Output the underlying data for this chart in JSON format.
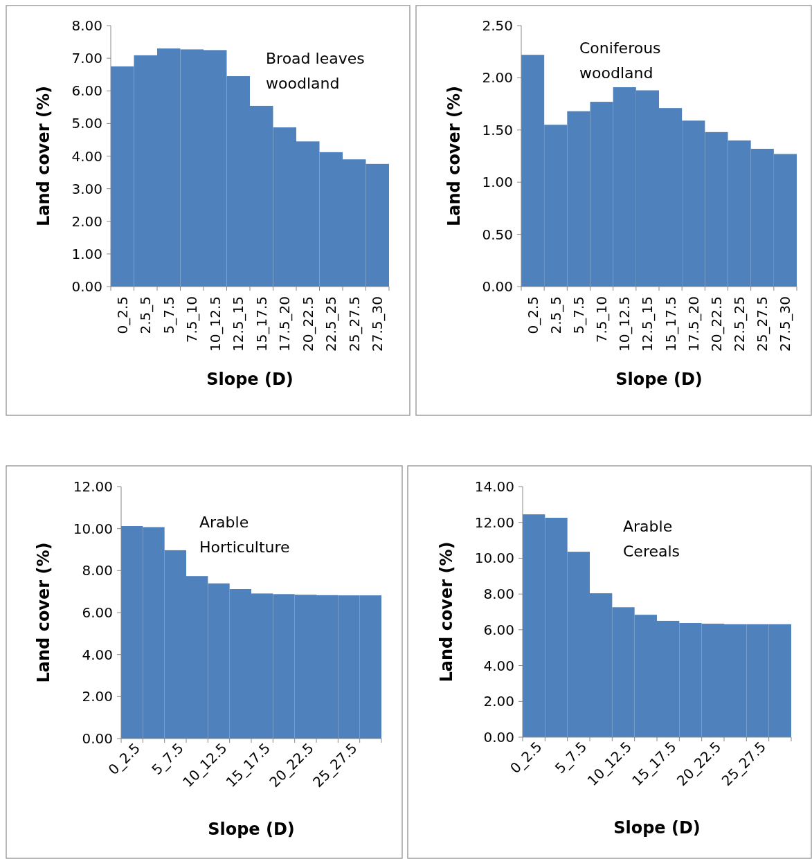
{
  "chart_data": [
    {
      "type": "bar",
      "annotations": [
        "Broad leaves woodland"
      ],
      "xlabel": "Slope (D)",
      "ylabel": "Land cover (%)",
      "categories": [
        "0_2.5",
        "2.5_5",
        "5_7.5",
        "7.5_10",
        "10_12.5",
        "12.5_15",
        "15_17.5",
        "17.5_20",
        "20_22.5",
        "22.5_25",
        "25_27.5",
        "27.5_30"
      ],
      "values": [
        6.75,
        7.09,
        7.3,
        7.27,
        7.25,
        6.45,
        5.54,
        4.88,
        4.45,
        4.12,
        3.9,
        3.76
      ],
      "color": "#4f81bd",
      "ylim": [
        0,
        8
      ],
      "yticks": [
        {
          "value": 0,
          "label": "0.00"
        },
        {
          "value": 1,
          "label": "1.00"
        },
        {
          "value": 2,
          "label": "2.00"
        },
        {
          "value": 3,
          "label": "3.00"
        },
        {
          "value": 4,
          "label": "4.00"
        },
        {
          "value": 5,
          "label": "5.00"
        },
        {
          "value": 6,
          "label": "6.00"
        },
        {
          "value": 7,
          "label": "7.00"
        },
        {
          "value": 8,
          "label": "8.00"
        }
      ]
    },
    {
      "type": "bar",
      "annotations": [
        "Coniferous woodland"
      ],
      "xlabel": "Slope (D)",
      "ylabel": "Land cover (%)",
      "categories": [
        "0_2.5",
        "2.5_5",
        "5_7.5",
        "7.5_10",
        "10_12.5",
        "12.5_15",
        "15_17.5",
        "17.5_20",
        "20_22.5",
        "22.5_25",
        "25_27.5",
        "27.5_30"
      ],
      "values": [
        2.22,
        1.55,
        1.68,
        1.77,
        1.91,
        1.88,
        1.71,
        1.59,
        1.48,
        1.4,
        1.32,
        1.27
      ],
      "color": "#4f81bd",
      "ylim": [
        0,
        2.5
      ],
      "yticks": [
        {
          "value": 0,
          "label": "0.00"
        },
        {
          "value": 0.5,
          "label": "0.50"
        },
        {
          "value": 1,
          "label": "1.00"
        },
        {
          "value": 1.5,
          "label": "1.50"
        },
        {
          "value": 2,
          "label": "2.00"
        },
        {
          "value": 2.5,
          "label": "2.50"
        }
      ]
    },
    {
      "type": "bar",
      "annotations": [
        "Arable Horticulture"
      ],
      "xlabel": "Slope (D)",
      "ylabel": "Land cover (%)",
      "categories": [
        "0_2.5",
        null,
        "5_7.5",
        null,
        "10_12.5",
        null,
        "15_17.5",
        null,
        "20_22.5",
        null,
        "25_27.5",
        null
      ],
      "values": [
        10.12,
        10.07,
        8.97,
        7.74,
        7.39,
        7.12,
        6.91,
        6.88,
        6.85,
        6.83,
        6.82,
        6.82
      ],
      "color": "#4f81bd",
      "ylim": [
        0,
        12
      ],
      "yticks": [
        {
          "value": 0,
          "label": "0.00"
        },
        {
          "value": 2,
          "label": "2.00"
        },
        {
          "value": 4,
          "label": "4.00"
        },
        {
          "value": 6,
          "label": "6.00"
        },
        {
          "value": 8,
          "label": "8.00"
        },
        {
          "value": 10,
          "label": "10.00"
        },
        {
          "value": 12,
          "label": "12.00"
        }
      ]
    },
    {
      "type": "bar",
      "annotations": [
        "Arable Cereals"
      ],
      "xlabel": "Slope (D)",
      "ylabel": "Land cover (%)",
      "categories": [
        "0_2.5",
        null,
        "5_7.5",
        null,
        "10_12.5",
        null,
        "15_17.5",
        null,
        "20_22.5",
        null,
        "25_27.5",
        null
      ],
      "values": [
        12.45,
        12.26,
        10.36,
        8.04,
        7.26,
        6.84,
        6.5,
        6.38,
        6.34,
        6.31,
        6.31,
        6.31
      ],
      "color": "#4f81bd",
      "ylim": [
        0,
        14
      ],
      "yticks": [
        {
          "value": 0,
          "label": "0.00"
        },
        {
          "value": 2,
          "label": "2.00"
        },
        {
          "value": 4,
          "label": "4.00"
        },
        {
          "value": 6,
          "label": "6.00"
        },
        {
          "value": 8,
          "label": "8.00"
        },
        {
          "value": 10,
          "label": "10.00"
        },
        {
          "value": 12,
          "label": "12.00"
        },
        {
          "value": 14,
          "label": "14.00"
        }
      ]
    }
  ]
}
